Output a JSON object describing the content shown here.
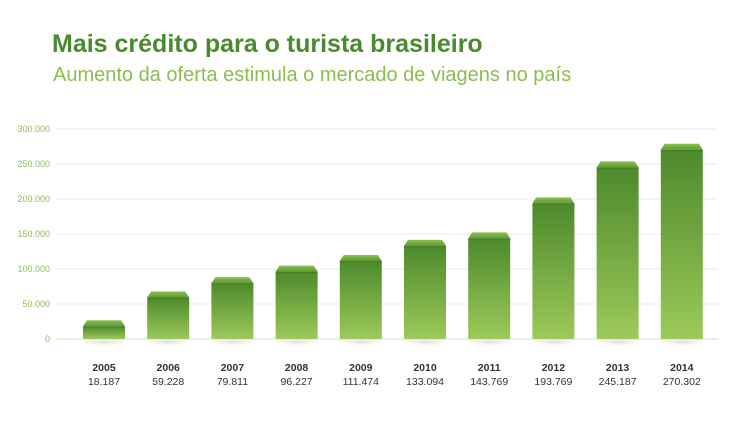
{
  "header": {
    "title": "Mais crédito para o turista brasileiro",
    "subtitle": "Aumento da oferta estimula o mercado de viagens no país"
  },
  "colors": {
    "title": "#4a8a2e",
    "subtitle": "#8cbd4f",
    "bar_top": "#4d8a2c",
    "bar_bottom": "#9cc95a",
    "cap": "#6aa53c",
    "grid": "#e6efd6",
    "tick": "#8cbd4f",
    "label": "#333333"
  },
  "chart_data": {
    "type": "bar",
    "categories": [
      "2005",
      "2006",
      "2007",
      "2008",
      "2009",
      "2010",
      "2011",
      "2012",
      "2013",
      "2014"
    ],
    "values": [
      18187,
      59228,
      79811,
      96227,
      111474,
      133094,
      143769,
      193769,
      245187,
      270302
    ],
    "value_labels": [
      "18.187",
      "59.228",
      "79.811",
      "96.227",
      "111.474",
      "133.094",
      "143.769",
      "193.769",
      "245.187",
      "270.302"
    ],
    "yticks": [
      0,
      50000,
      100000,
      150000,
      200000,
      250000,
      300000
    ],
    "ytick_labels": [
      "0",
      "50.000",
      "100.000",
      "150.000",
      "200.000",
      "250.000",
      "300.000"
    ],
    "ylim": [
      0,
      300000
    ],
    "grid": true,
    "legend": "none",
    "title": "Mais crédito para o turista brasileiro",
    "subtitle": "Aumento da oferta estimula o mercado de viagens no país"
  }
}
